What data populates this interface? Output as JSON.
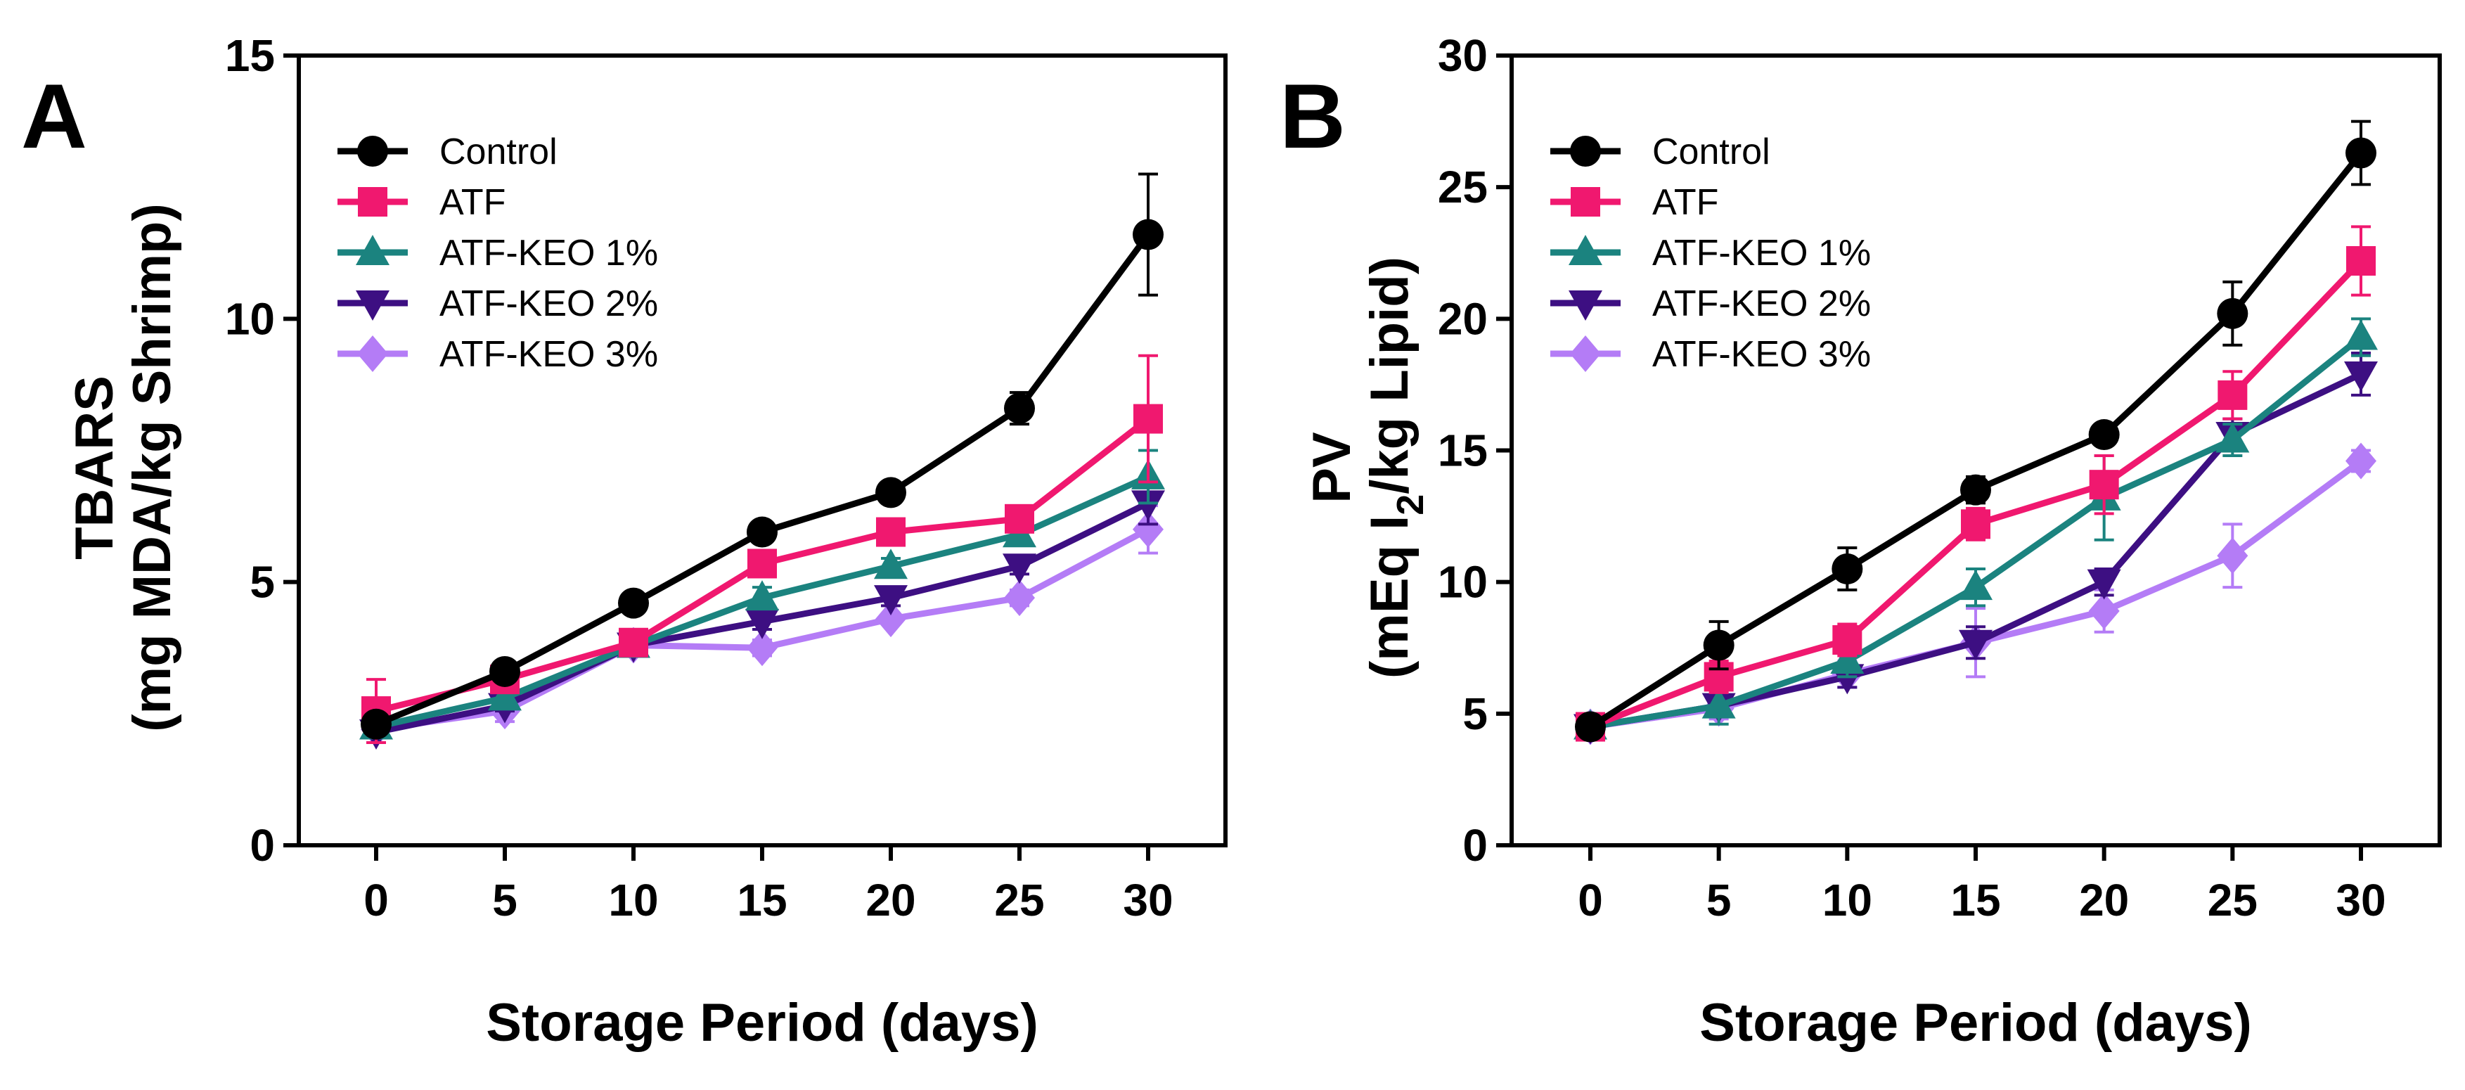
{
  "chart_data": [
    {
      "panel": "A",
      "type": "line",
      "x": [
        0,
        5,
        10,
        15,
        20,
        25,
        30
      ],
      "xlabel": "Storage Period (days)",
      "ylabel": [
        "TBARS",
        "(mg MDA/kg Shrimp)"
      ],
      "xticks": [
        "0",
        "5",
        "10",
        "15",
        "20",
        "25",
        "30"
      ],
      "yticks": [
        "0",
        "5",
        "10",
        "15"
      ],
      "ylim": [
        0,
        15
      ],
      "series": [
        {
          "name": "Control",
          "color": "#000000",
          "marker": "circle",
          "values": [
            2.3,
            3.3,
            4.6,
            5.95,
            6.7,
            8.3,
            11.6
          ],
          "errors": [
            0.15,
            0.15,
            0.15,
            0.2,
            0.15,
            0.3,
            1.15
          ]
        },
        {
          "name": "ATF",
          "color": "#f0186f",
          "marker": "square",
          "values": [
            2.55,
            3.15,
            3.85,
            5.35,
            5.95,
            6.2,
            8.1
          ],
          "errors": [
            0.6,
            0.15,
            0.15,
            0.2,
            0.15,
            0.2,
            1.2
          ]
        },
        {
          "name": "ATF-KEO 1%",
          "color": "#1b837f",
          "marker": "triangle-up",
          "values": [
            2.25,
            2.8,
            3.8,
            4.7,
            5.3,
            5.9,
            7.0
          ],
          "errors": [
            0.15,
            0.15,
            0.15,
            0.2,
            0.15,
            0.15,
            0.5
          ]
        },
        {
          "name": "ATF-KEO 2%",
          "color": "#3d0f82",
          "marker": "triangle-down",
          "values": [
            2.15,
            2.65,
            3.8,
            4.25,
            4.7,
            5.3,
            6.5
          ],
          "errors": [
            0.1,
            0.1,
            0.1,
            0.15,
            0.15,
            0.15,
            0.4
          ]
        },
        {
          "name": "ATF-KEO 3%",
          "color": "#b47cf6",
          "marker": "diamond",
          "values": [
            2.2,
            2.55,
            3.8,
            3.75,
            4.3,
            4.7,
            6.0
          ],
          "errors": [
            0.1,
            0.2,
            0.1,
            0.15,
            0.1,
            0.15,
            0.45
          ]
        }
      ]
    },
    {
      "panel": "B",
      "type": "line",
      "x": [
        0,
        5,
        10,
        15,
        20,
        25,
        30
      ],
      "xlabel": "Storage Period (days)",
      "ylabel": [
        "PV",
        "(mEq I",
        "2",
        "/kg Lipid)"
      ],
      "xticks": [
        "0",
        "5",
        "10",
        "15",
        "20",
        "25",
        "30"
      ],
      "yticks": [
        "0",
        "5",
        "10",
        "15",
        "20",
        "25",
        "30"
      ],
      "ylim": [
        0,
        30
      ],
      "series": [
        {
          "name": "Control",
          "color": "#000000",
          "marker": "circle",
          "values": [
            4.5,
            7.6,
            10.5,
            13.5,
            15.6,
            20.2,
            26.3
          ],
          "errors": [
            0.3,
            0.9,
            0.8,
            0.5,
            0.4,
            1.2,
            1.2
          ]
        },
        {
          "name": "ATF",
          "color": "#f0186f",
          "marker": "square",
          "values": [
            4.5,
            6.4,
            7.8,
            12.2,
            13.7,
            17.1,
            22.2
          ],
          "errors": [
            0.3,
            0.6,
            0.6,
            0.6,
            1.1,
            0.9,
            1.3
          ]
        },
        {
          "name": "ATF-KEO 1%",
          "color": "#1b837f",
          "marker": "triangle-up",
          "values": [
            4.5,
            5.3,
            7.0,
            9.8,
            13.2,
            15.4,
            19.3
          ],
          "errors": [
            0.3,
            0.7,
            0.6,
            0.7,
            1.6,
            0.6,
            0.7
          ]
        },
        {
          "name": "ATF-KEO 2%",
          "color": "#3d0f82",
          "marker": "triangle-down",
          "values": [
            4.5,
            5.3,
            6.4,
            7.7,
            10.0,
            15.6,
            17.9
          ],
          "errors": [
            0.3,
            0.4,
            0.4,
            0.6,
            0.5,
            0.6,
            0.8
          ]
        },
        {
          "name": "ATF-KEO 3%",
          "color": "#b47cf6",
          "marker": "diamond",
          "values": [
            4.5,
            5.2,
            6.5,
            7.7,
            8.9,
            11.0,
            14.6
          ],
          "errors": [
            0.3,
            0.4,
            0.5,
            1.3,
            0.8,
            1.2,
            0.4
          ]
        }
      ]
    }
  ]
}
